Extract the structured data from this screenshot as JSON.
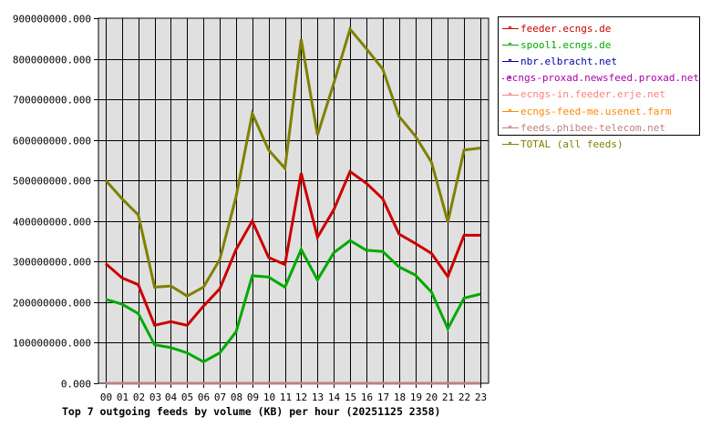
{
  "chart_data": {
    "type": "line",
    "title": "Top 7 outgoing feeds by volume (KB) per hour (20251125 2358)",
    "xlabel": "",
    "ylabel": "",
    "ylim": [
      0,
      900000000
    ],
    "grid": true,
    "legend_position": "right",
    "y_ticks": [
      "0.000",
      "100000000.000",
      "200000000.000",
      "300000000.000",
      "400000000.000",
      "500000000.000",
      "600000000.000",
      "700000000.000",
      "800000000.000",
      "900000000.000"
    ],
    "categories": [
      "00",
      "01",
      "02",
      "03",
      "04",
      "05",
      "06",
      "07",
      "08",
      "09",
      "10",
      "11",
      "12",
      "13",
      "14",
      "15",
      "16",
      "17",
      "18",
      "19",
      "20",
      "21",
      "22",
      "23"
    ],
    "series": [
      {
        "name": "feeder.ecngs.de",
        "color": "#cc0000",
        "values": [
          295000000,
          260000000,
          243000000,
          143000000,
          152000000,
          143000000,
          190000000,
          233000000,
          330000000,
          400000000,
          310000000,
          293000000,
          518000000,
          360000000,
          428000000,
          522000000,
          493000000,
          455000000,
          368000000,
          345000000,
          320000000,
          263000000,
          365000000,
          365000000
        ]
      },
      {
        "name": "spool1.ecngs.de",
        "color": "#00aa00",
        "values": [
          207000000,
          195000000,
          172000000,
          95000000,
          88000000,
          75000000,
          53000000,
          75000000,
          127000000,
          265000000,
          262000000,
          237000000,
          330000000,
          255000000,
          322000000,
          352000000,
          328000000,
          325000000,
          287000000,
          267000000,
          225000000,
          135000000,
          210000000,
          220000000
        ]
      },
      {
        "name": "nbr.elbracht.net",
        "color": "#0000aa",
        "values": [
          0,
          0,
          0,
          0,
          0,
          0,
          0,
          0,
          0,
          0,
          0,
          0,
          0,
          0,
          0,
          0,
          0,
          0,
          0,
          0,
          0,
          0,
          0,
          0
        ]
      },
      {
        "name": "ecngs-proxad.newsfeed.proxad.net",
        "color": "#aa00aa",
        "values": [
          0,
          0,
          0,
          0,
          0,
          0,
          0,
          0,
          0,
          0,
          0,
          0,
          0,
          0,
          0,
          0,
          0,
          0,
          0,
          0,
          0,
          0,
          0,
          0
        ]
      },
      {
        "name": "ecngs-in.feeder.erje.net",
        "color": "#ff8080",
        "values": [
          0,
          0,
          0,
          0,
          0,
          0,
          0,
          0,
          0,
          0,
          0,
          0,
          0,
          0,
          0,
          0,
          0,
          0,
          0,
          0,
          0,
          0,
          0,
          0
        ]
      },
      {
        "name": "ecngs-feed-me.usenet.farm",
        "color": "#ff8800",
        "values": [
          0,
          0,
          0,
          0,
          0,
          0,
          0,
          0,
          0,
          0,
          0,
          0,
          0,
          0,
          0,
          0,
          0,
          0,
          0,
          0,
          0,
          0,
          0,
          0
        ]
      },
      {
        "name": "feeds.phibee-telecom.net",
        "color": "#c08080",
        "values": [
          0,
          0,
          0,
          0,
          0,
          0,
          0,
          0,
          0,
          0,
          0,
          0,
          0,
          0,
          0,
          0,
          0,
          0,
          0,
          0,
          0,
          0,
          0,
          0
        ]
      },
      {
        "name": "TOTAL (all feeds)",
        "color": "#808000",
        "values": [
          500000000,
          455000000,
          415000000,
          237000000,
          240000000,
          215000000,
          237000000,
          305000000,
          460000000,
          665000000,
          575000000,
          530000000,
          848000000,
          612000000,
          740000000,
          873000000,
          825000000,
          775000000,
          658000000,
          610000000,
          545000000,
          398000000,
          575000000,
          580000000
        ]
      }
    ]
  },
  "legend": {
    "items": [
      {
        "label": "feeder.ecngs.de",
        "color": "#cc0000"
      },
      {
        "label": "spool1.ecngs.de",
        "color": "#00aa00"
      },
      {
        "label": "nbr.elbracht.net",
        "color": "#0000aa"
      },
      {
        "label": "ecngs-proxad.newsfeed.proxad.net",
        "color": "#aa00aa"
      },
      {
        "label": "ecngs-in.feeder.erje.net",
        "color": "#ff8080"
      },
      {
        "label": "ecngs-feed-me.usenet.farm",
        "color": "#ff8800"
      },
      {
        "label": "feeds.phibee-telecom.net",
        "color": "#c08080"
      },
      {
        "label": "TOTAL (all feeds)",
        "color": "#808000"
      }
    ]
  },
  "colors": {
    "plot_background": "#e0e0e0",
    "grid": "#000000"
  }
}
